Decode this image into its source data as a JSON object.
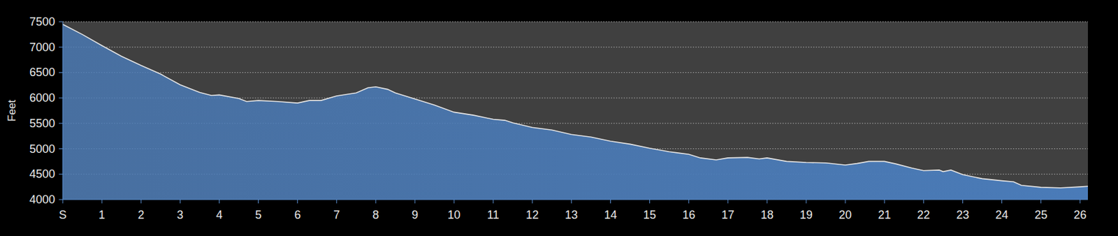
{
  "chart_data": {
    "type": "area",
    "y_label": "Feet",
    "x": [
      0,
      0.5,
      1,
      1.5,
      2,
      2.5,
      3,
      3.5,
      3.8,
      4,
      4.5,
      4.7,
      5,
      5.5,
      6,
      6.3,
      6.6,
      7,
      7.5,
      7.8,
      8,
      8.3,
      8.5,
      9,
      9.5,
      10,
      10.5,
      11,
      11.3,
      11.5,
      12,
      12.5,
      13,
      13.5,
      14,
      14.5,
      15,
      15.5,
      15.7,
      16,
      16.3,
      16.7,
      17,
      17.5,
      17.8,
      18,
      18.5,
      19,
      19.5,
      20,
      20.3,
      20.6,
      21,
      21.3,
      21.7,
      22,
      22.4,
      22.5,
      22.7,
      23,
      23.5,
      24,
      24.3,
      24.5,
      25,
      25.5,
      26,
      26.2
    ],
    "values": [
      7450,
      7250,
      7030,
      6820,
      6640,
      6470,
      6260,
      6110,
      6050,
      6060,
      5990,
      5930,
      5950,
      5930,
      5900,
      5950,
      5950,
      6040,
      6100,
      6200,
      6220,
      6170,
      6100,
      5980,
      5860,
      5720,
      5660,
      5580,
      5560,
      5510,
      5420,
      5370,
      5280,
      5230,
      5150,
      5090,
      5010,
      4940,
      4920,
      4890,
      4820,
      4780,
      4820,
      4830,
      4800,
      4820,
      4750,
      4730,
      4720,
      4680,
      4710,
      4750,
      4750,
      4700,
      4620,
      4570,
      4580,
      4550,
      4580,
      4490,
      4410,
      4370,
      4350,
      4280,
      4240,
      4230,
      4250,
      4260
    ],
    "color": "#4a7bb8",
    "xlim": [
      0,
      26.2
    ],
    "xticks": [
      {
        "value": 0,
        "label": "S"
      },
      1,
      2,
      3,
      4,
      5,
      6,
      7,
      8,
      9,
      10,
      11,
      12,
      13,
      14,
      15,
      16,
      17,
      18,
      19,
      20,
      21,
      22,
      23,
      24,
      25,
      26
    ],
    "ylim": [
      4000,
      7500
    ],
    "yticks": [
      4000,
      4500,
      5000,
      5500,
      6000,
      6500,
      7000,
      7500
    ],
    "grid": true
  }
}
